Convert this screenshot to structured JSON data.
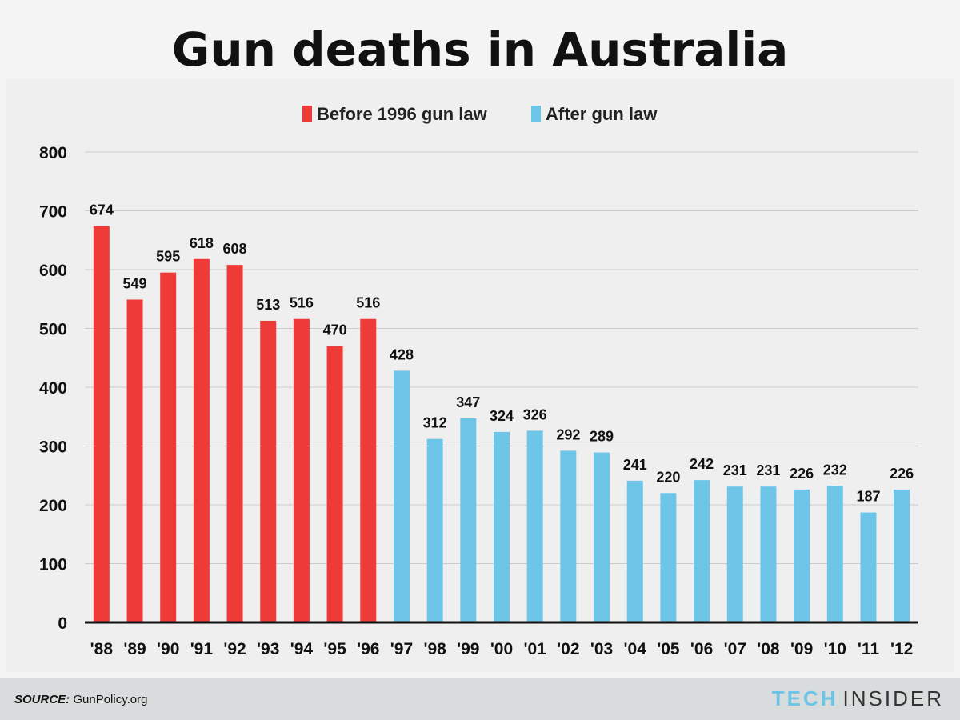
{
  "chart_data": {
    "type": "bar",
    "title": "Gun deaths in Australia",
    "xlabel": "",
    "ylabel": "",
    "ylim": [
      0,
      800
    ],
    "yticks": [
      0,
      100,
      200,
      300,
      400,
      500,
      600,
      700,
      800
    ],
    "grid": true,
    "legend_position": "top-center",
    "categories": [
      "'88",
      "'89",
      "'90",
      "'91",
      "'92",
      "'93",
      "'94",
      "'95",
      "'96",
      "'97",
      "'98",
      "'99",
      "'00",
      "'01",
      "'02",
      "'03",
      "'04",
      "'05",
      "'06",
      "'07",
      "'08",
      "'09",
      "'10",
      "'11",
      "'12"
    ],
    "series": [
      {
        "name": "Before 1996 gun law",
        "color": "#ee3b38",
        "values": [
          674,
          549,
          595,
          618,
          608,
          513,
          516,
          470,
          516,
          null,
          null,
          null,
          null,
          null,
          null,
          null,
          null,
          null,
          null,
          null,
          null,
          null,
          null,
          null,
          null
        ]
      },
      {
        "name": "After gun law",
        "color": "#6dc5e8",
        "values": [
          null,
          null,
          null,
          null,
          null,
          null,
          null,
          null,
          null,
          428,
          312,
          347,
          324,
          326,
          292,
          289,
          241,
          220,
          242,
          231,
          231,
          226,
          232,
          187,
          226
        ]
      }
    ]
  },
  "footer": {
    "source_label": "SOURCE:",
    "source_value": "GunPolicy.org",
    "brand_tech": "TECH",
    "brand_insider": "INSIDER"
  },
  "colors": {
    "background": "#f4f4f4",
    "plot_background": "#efefef",
    "gridline": "#cccccc",
    "axis": "#111111"
  }
}
